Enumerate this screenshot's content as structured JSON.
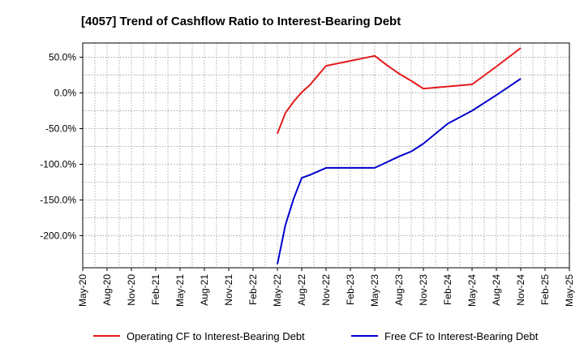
{
  "chart_data": {
    "type": "line",
    "title": "[4057]  Trend of Cashflow Ratio to Interest-Bearing Debt",
    "xlabel": "",
    "ylabel": "",
    "x_tick_labels": [
      "May-20",
      "Aug-20",
      "Nov-20",
      "Feb-21",
      "May-21",
      "Aug-21",
      "Nov-21",
      "Feb-22",
      "May-22",
      "Aug-22",
      "Nov-22",
      "Feb-23",
      "May-23",
      "Aug-23",
      "Nov-23",
      "Feb-24",
      "May-24",
      "Aug-24",
      "Nov-24",
      "Feb-25",
      "May-25"
    ],
    "y_ticks": [
      50,
      0,
      -50,
      -100,
      -150,
      -200
    ],
    "y_tick_labels": [
      "50.0%",
      "0.0%",
      "-50.0%",
      "-100.0%",
      "-150.0%",
      "-200.0%"
    ],
    "ylim": [
      -245,
      70
    ],
    "grid": true,
    "legend_position": "bottom",
    "series": [
      {
        "name": "Operating CF to Interest-Bearing Debt",
        "color": "#e41a1c",
        "x": [
          8,
          8.33,
          8.67,
          9,
          9.33,
          10,
          11,
          12,
          12.5,
          13,
          13.5,
          14,
          15,
          16,
          17,
          18
        ],
        "y": [
          -57,
          -28,
          -12,
          1,
          11,
          38,
          45,
          52,
          39,
          27,
          17,
          6,
          9,
          12,
          37,
          63
        ]
      },
      {
        "name": "Free CF to Interest-Bearing Debt",
        "color": "#0000cc",
        "x": [
          8,
          8.33,
          8.67,
          9,
          9.33,
          10,
          11,
          12,
          12.5,
          13,
          13.5,
          14,
          15,
          16,
          17,
          18
        ],
        "y": [
          -240,
          -185,
          -148,
          -119,
          -115,
          -105,
          -105,
          -105,
          -97,
          -89,
          -82,
          -71,
          -43,
          -25,
          -3,
          20
        ]
      }
    ]
  }
}
